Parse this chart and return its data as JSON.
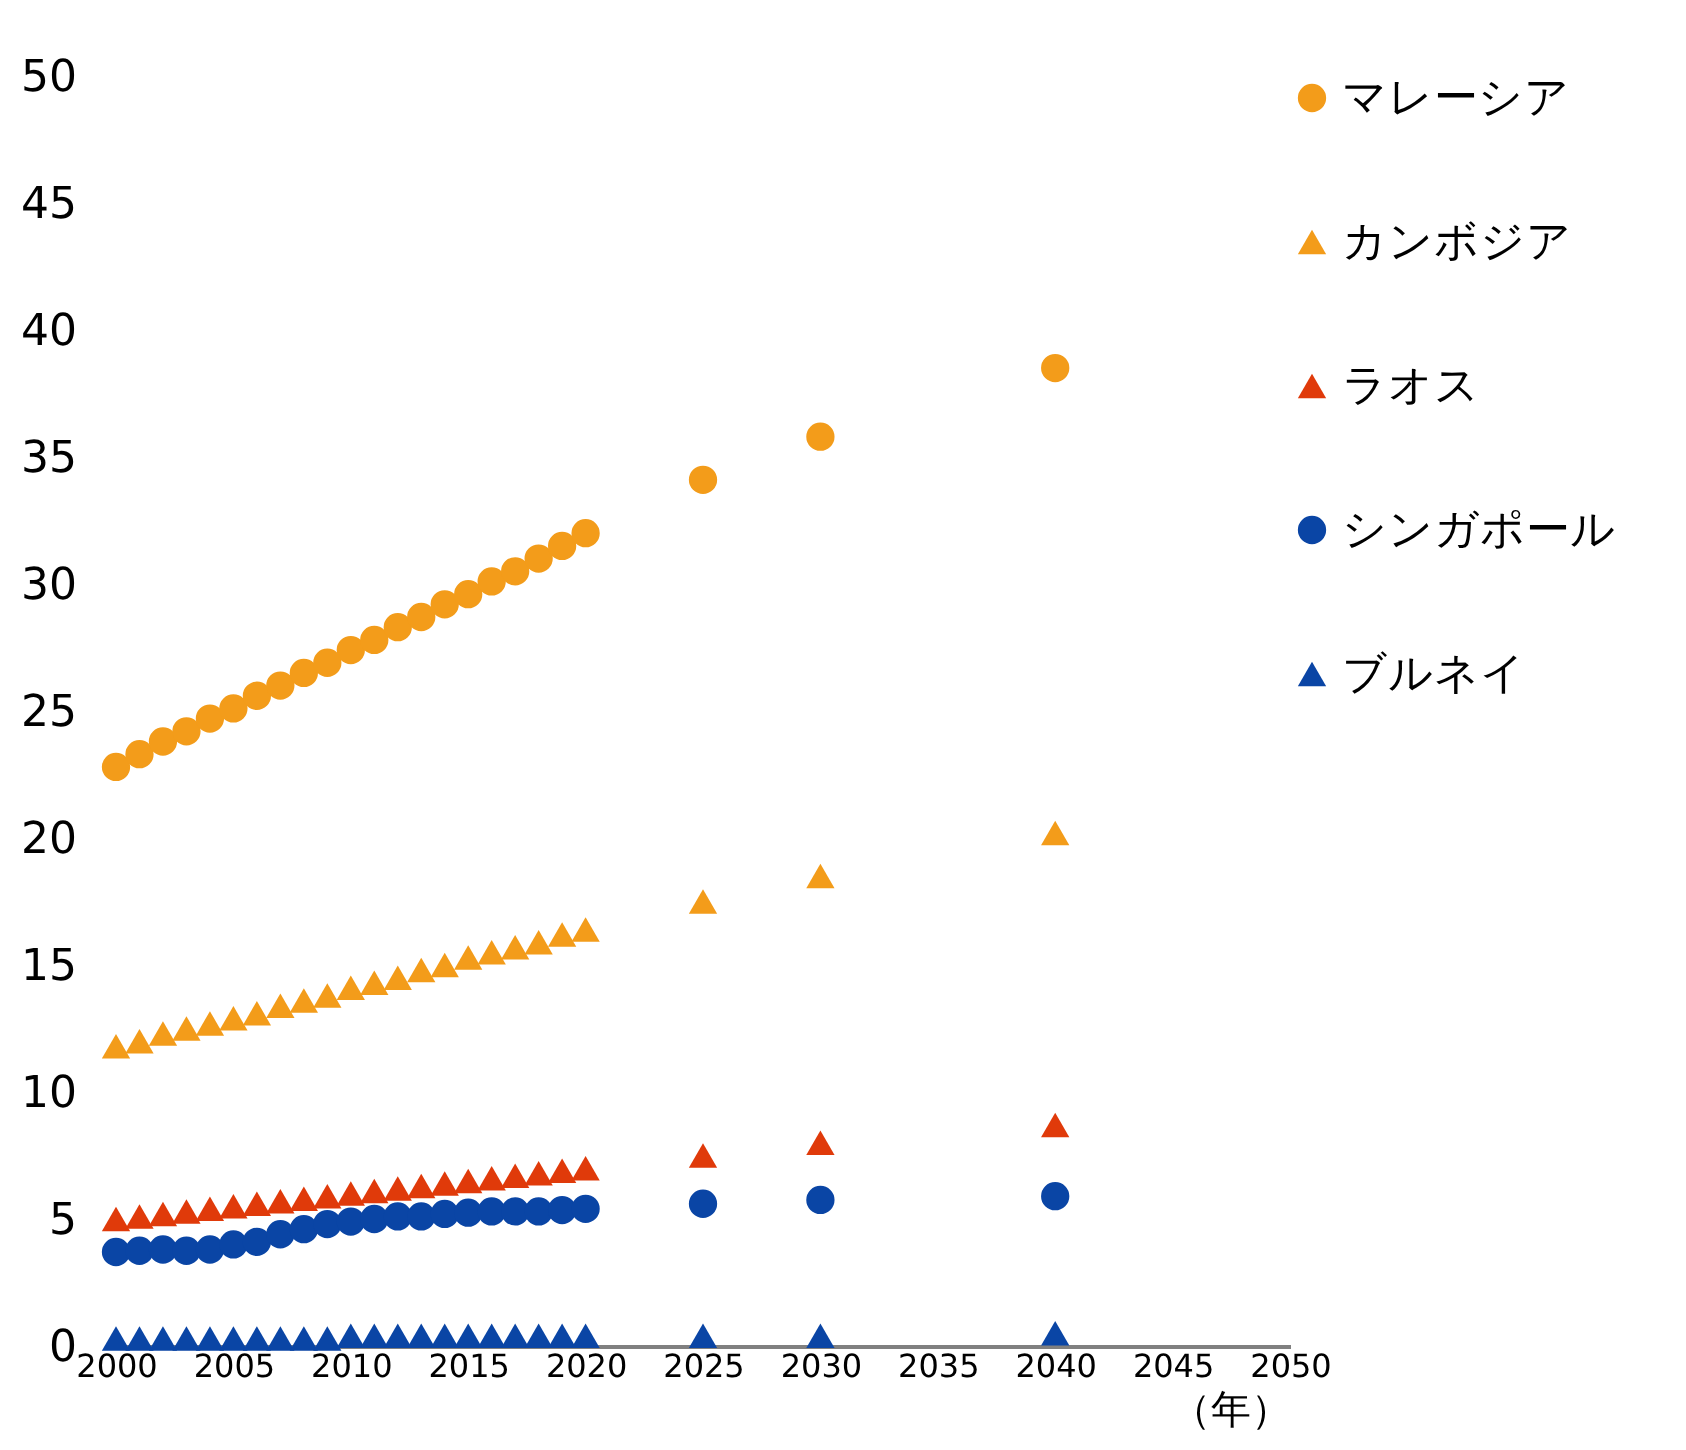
{
  "chart_data": {
    "type": "scatter",
    "xlabel": "（年）",
    "x": [
      2000,
      2001,
      2002,
      2003,
      2004,
      2005,
      2006,
      2007,
      2008,
      2009,
      2010,
      2011,
      2012,
      2013,
      2014,
      2015,
      2016,
      2017,
      2018,
      2019,
      2020,
      2025,
      2030,
      2040
    ],
    "xlim": [
      2000,
      2050
    ],
    "xticks": [
      2000,
      2005,
      2010,
      2015,
      2020,
      2025,
      2030,
      2035,
      2040,
      2045,
      2050
    ],
    "ylim": [
      0,
      50
    ],
    "yticks": [
      0,
      5,
      10,
      15,
      20,
      25,
      30,
      35,
      40,
      45,
      50
    ],
    "legend": "right",
    "series": [
      {
        "name": "マレーシア",
        "color": "#f39c1a",
        "marker": "circle",
        "values": [
          22.8,
          23.3,
          23.8,
          24.2,
          24.7,
          25.1,
          25.6,
          26.0,
          26.5,
          26.9,
          27.4,
          27.8,
          28.3,
          28.7,
          29.2,
          29.6,
          30.1,
          30.5,
          31.0,
          31.5,
          32.0,
          34.1,
          35.8,
          38.5
        ]
      },
      {
        "name": "カンボジア",
        "color": "#f39c1a",
        "marker": "triangle",
        "values": [
          11.8,
          12.0,
          12.3,
          12.5,
          12.7,
          12.9,
          13.1,
          13.4,
          13.6,
          13.8,
          14.1,
          14.3,
          14.5,
          14.8,
          15.0,
          15.3,
          15.5,
          15.7,
          15.9,
          16.2,
          16.4,
          17.5,
          18.5,
          20.2
        ]
      },
      {
        "name": "ラオス",
        "color": "#e03a0a",
        "marker": "triangle",
        "values": [
          5.0,
          5.1,
          5.2,
          5.3,
          5.4,
          5.5,
          5.6,
          5.7,
          5.8,
          5.9,
          6.0,
          6.1,
          6.2,
          6.3,
          6.4,
          6.5,
          6.6,
          6.7,
          6.8,
          6.9,
          7.0,
          7.5,
          8.0,
          8.7
        ]
      },
      {
        "name": "シンガポール",
        "color": "#0a45a5",
        "marker": "circle",
        "values": [
          3.7,
          3.75,
          3.8,
          3.75,
          3.8,
          4.0,
          4.1,
          4.4,
          4.6,
          4.8,
          4.9,
          5.0,
          5.1,
          5.1,
          5.2,
          5.25,
          5.3,
          5.3,
          5.3,
          5.35,
          5.4,
          5.6,
          5.75,
          5.9
        ]
      },
      {
        "name": "ブルネイ",
        "color": "#0a45a5",
        "marker": "triangle",
        "values": [
          0.3,
          0.3,
          0.3,
          0.3,
          0.3,
          0.3,
          0.3,
          0.3,
          0.3,
          0.3,
          0.4,
          0.4,
          0.4,
          0.4,
          0.4,
          0.4,
          0.4,
          0.4,
          0.4,
          0.4,
          0.4,
          0.4,
          0.4,
          0.5
        ]
      }
    ]
  }
}
